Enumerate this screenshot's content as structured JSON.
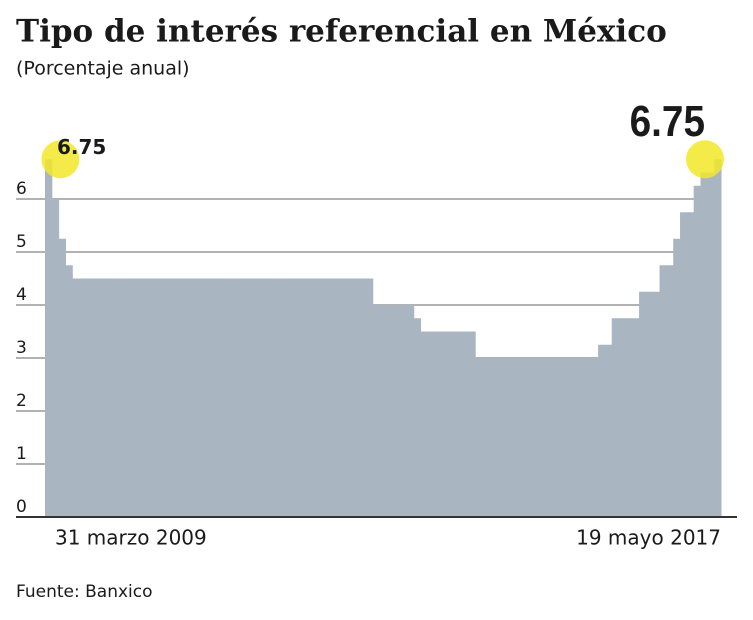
{
  "chart_data": {
    "type": "step-area",
    "title": "Tipo de interés referencial en México",
    "subtitle": "(Porcentaje anual)",
    "source": "Fuente: Banxico",
    "color": "#a9b6c1",
    "highlight_color": "#f2e829",
    "categories": [
      "31 marzo 2009",
      null,
      null,
      null,
      null,
      null,
      null,
      null,
      null,
      null,
      null,
      null,
      null,
      null,
      null,
      null,
      null,
      null,
      null,
      null,
      null,
      null,
      null,
      null,
      null,
      null,
      null,
      null,
      null,
      null,
      null,
      null,
      null,
      null,
      null,
      null,
      null,
      null,
      null,
      null,
      null,
      null,
      null,
      null,
      null,
      null,
      null,
      null,
      null,
      null,
      null,
      null,
      null,
      null,
      null,
      null,
      null,
      null,
      null,
      null,
      null,
      null,
      null,
      null,
      null,
      null,
      null,
      null,
      null,
      null,
      null,
      null,
      null,
      null,
      null,
      null,
      null,
      null,
      null,
      null,
      null,
      null,
      null,
      null,
      null,
      null,
      null,
      null,
      null,
      null,
      null,
      null,
      null,
      null,
      null,
      null,
      null,
      null,
      "19 mayo 2017"
    ],
    "values": [
      6.75,
      6,
      5.25,
      4.75,
      4.5,
      4.5,
      4.5,
      4.5,
      4.5,
      4.5,
      4.5,
      4.5,
      4.5,
      4.5,
      4.5,
      4.5,
      4.5,
      4.5,
      4.5,
      4.5,
      4.5,
      4.5,
      4.5,
      4.5,
      4.5,
      4.5,
      4.5,
      4.5,
      4.5,
      4.5,
      4.5,
      4.5,
      4.5,
      4.5,
      4.5,
      4.5,
      4.5,
      4.5,
      4.5,
      4.5,
      4.5,
      4.5,
      4.5,
      4.5,
      4.5,
      4.5,
      4.5,
      4.5,
      4,
      4,
      4,
      4,
      4,
      4,
      3.75,
      3.5,
      3.5,
      3.5,
      3.5,
      3.5,
      3.5,
      3.5,
      3.5,
      3,
      3,
      3,
      3,
      3,
      3,
      3,
      3,
      3,
      3,
      3,
      3,
      3,
      3,
      3,
      3,
      3,
      3,
      3.25,
      3.25,
      3.75,
      3.75,
      3.75,
      3.75,
      4.25,
      4.25,
      4.25,
      4.75,
      4.75,
      5.25,
      5.75,
      5.75,
      6.25,
      6.5,
      6.5,
      6.75
    ],
    "ylim": [
      0,
      7
    ],
    "yticks": [
      0,
      1,
      2,
      3,
      4,
      5,
      6
    ],
    "grid": true
  }
}
